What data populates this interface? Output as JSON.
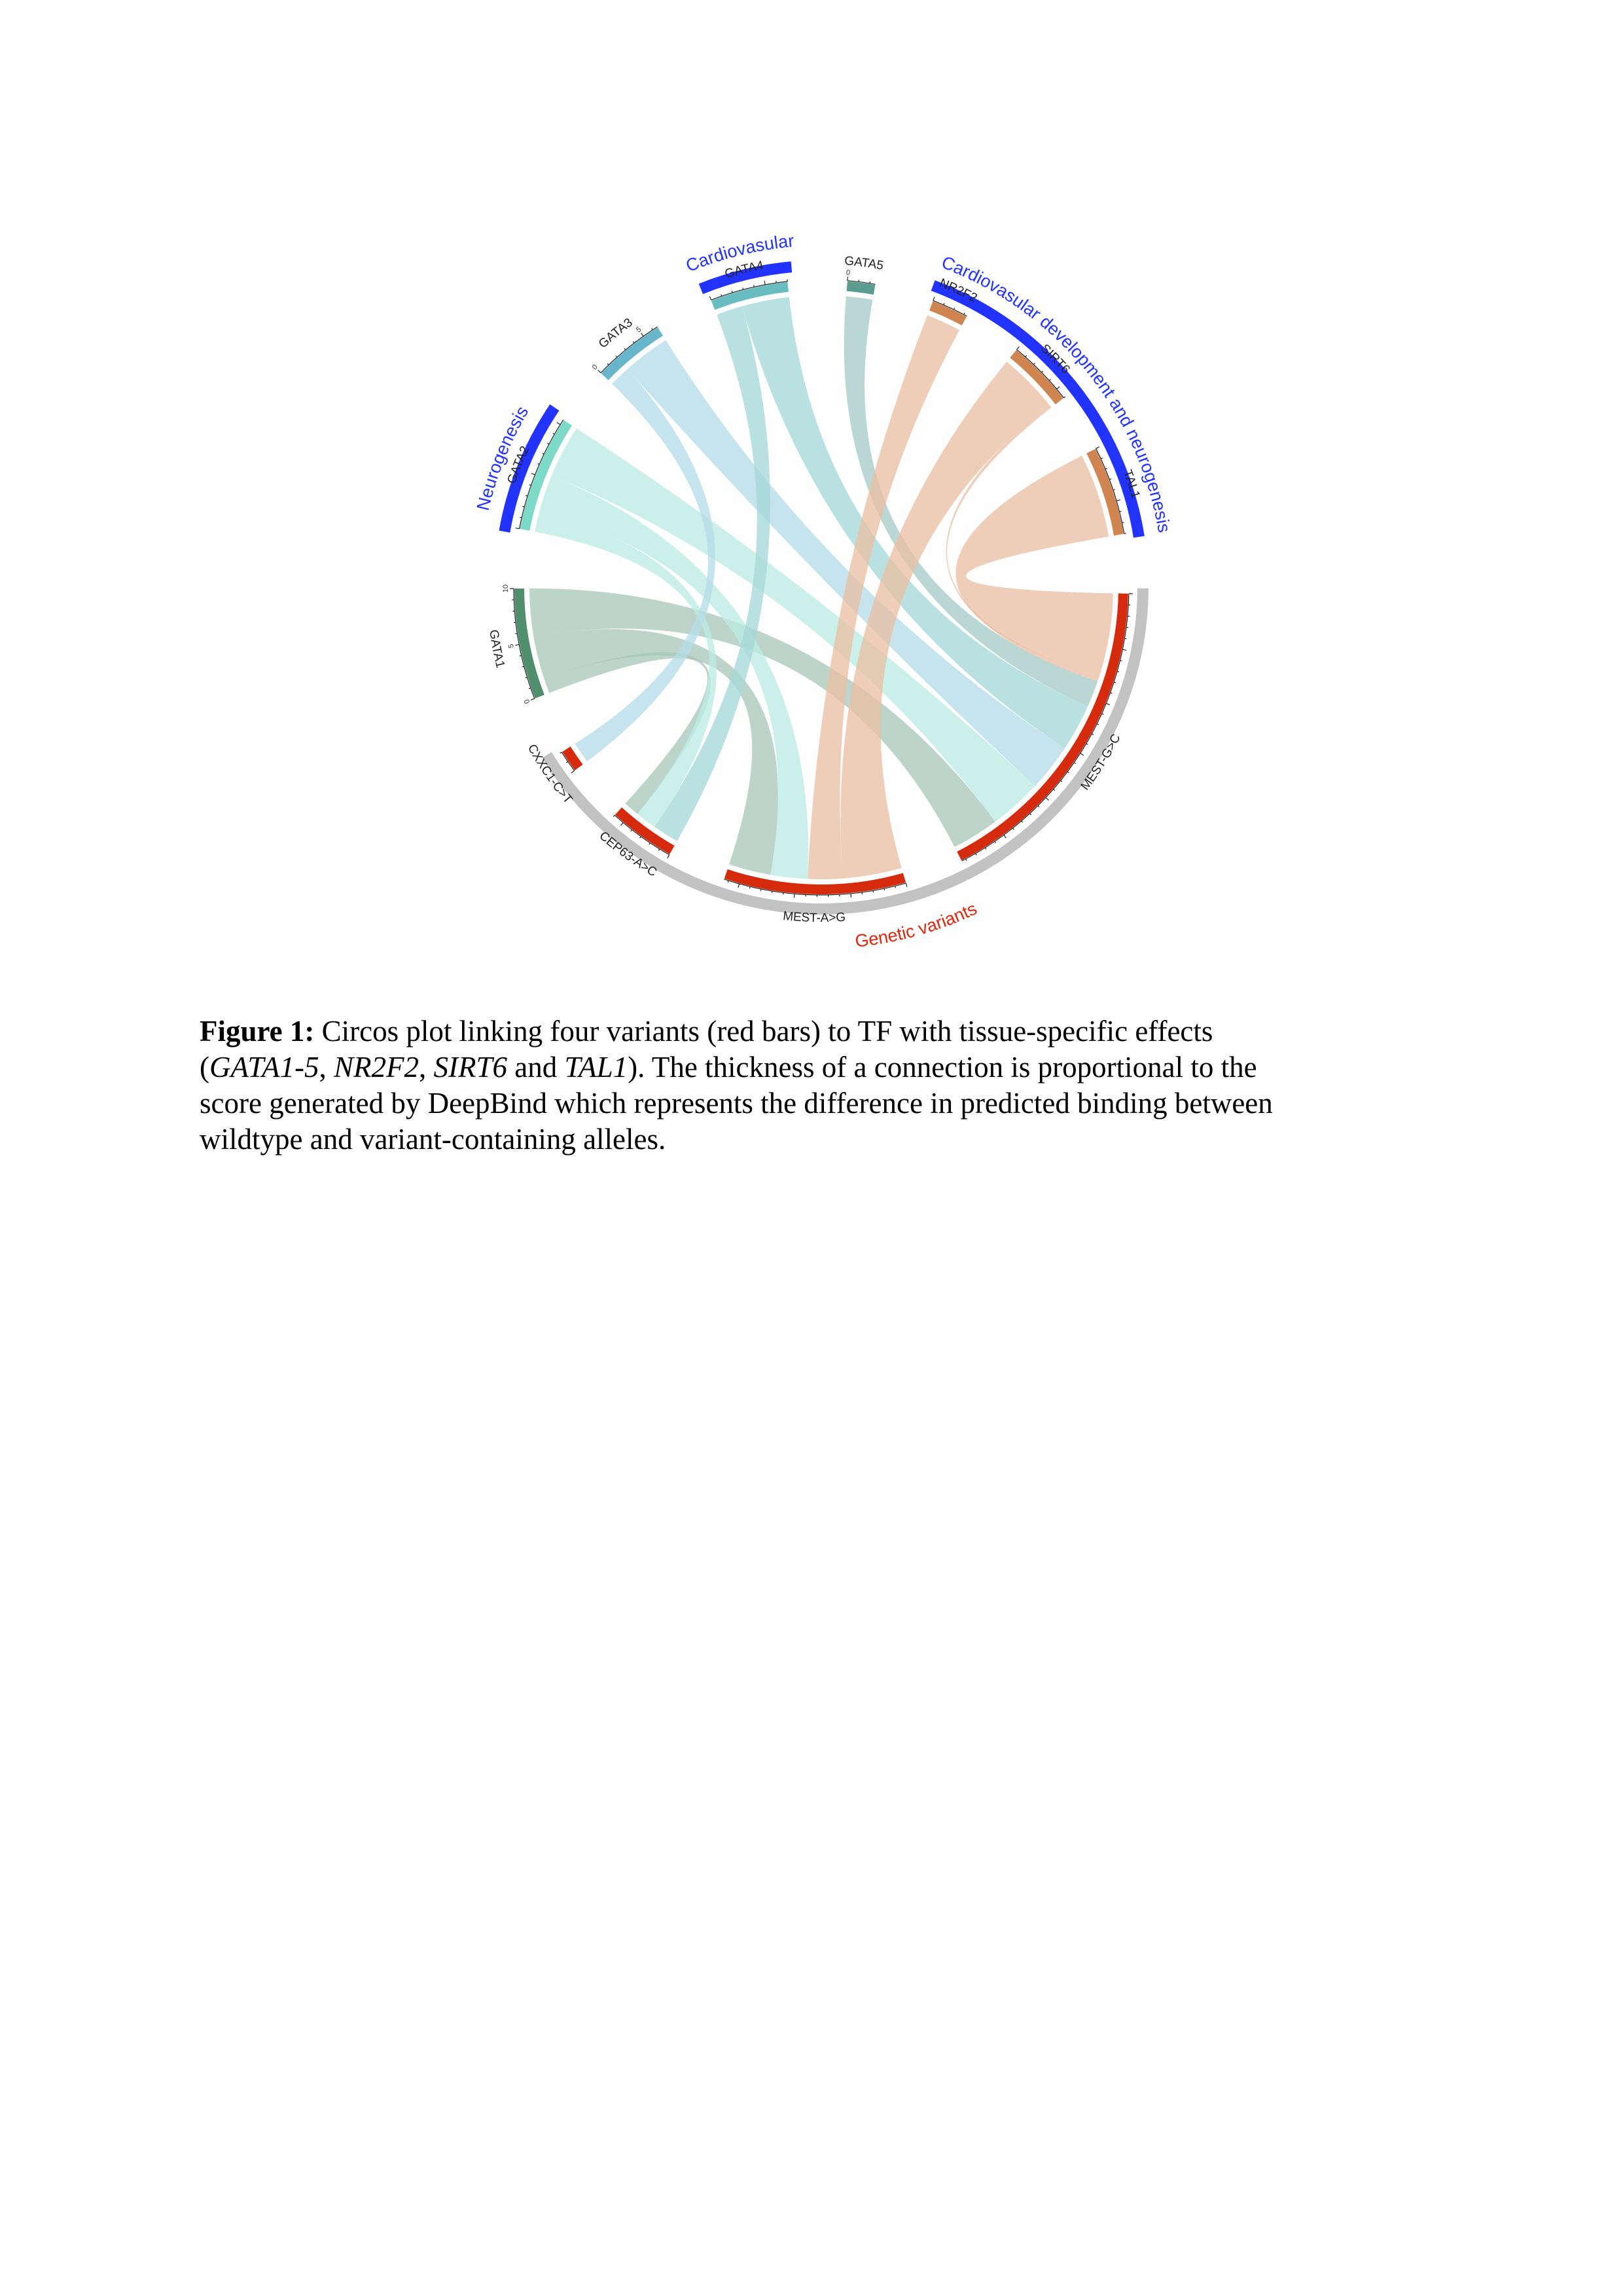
{
  "chart_data": {
    "type": "chord",
    "sectors": [
      {
        "name": "GATA4",
        "color": "#69bcbf",
        "link_color": "#a6d9d8",
        "tick_labels": []
      },
      {
        "name": "GATA5",
        "color": "#5a9c8e",
        "link_color": "#a8ccc6",
        "tick_labels": [
          0
        ]
      },
      {
        "name": "NR2F2",
        "color": "#d0844f",
        "link_color": "#e9c0a4",
        "tick_labels": []
      },
      {
        "name": "SIRT6",
        "color": "#d0844f",
        "link_color": "#e9c0a4",
        "tick_labels": []
      },
      {
        "name": "TAL1",
        "color": "#d0844f",
        "link_color": "#e9c0a4",
        "tick_labels": []
      },
      {
        "name": "MEST-G>C",
        "color": "#d62a0c",
        "link_color": null,
        "tick_labels": []
      },
      {
        "name": "MEST-A>G",
        "color": "#d62a0c",
        "link_color": null,
        "tick_labels": []
      },
      {
        "name": "CEP63-A>C",
        "color": "#d62a0c",
        "link_color": null,
        "tick_labels": []
      },
      {
        "name": "CXXC1-C>T",
        "color": "#d62a0c",
        "link_color": null,
        "tick_labels": []
      },
      {
        "name": "GATA1",
        "color": "#4f8f6e",
        "link_color": "#a9c8ba",
        "tick_labels": [
          0,
          5,
          10
        ]
      },
      {
        "name": "GATA2",
        "color": "#7dd9c8",
        "link_color": "#bcece3",
        "tick_labels": []
      },
      {
        "name": "GATA3",
        "color": "#68b6cc",
        "link_color": "#b5dce8",
        "tick_labels": [
          0,
          5
        ]
      }
    ],
    "groups": [
      {
        "label": "Cardiovasular",
        "members": [
          "GATA4"
        ],
        "bar_color": "#2233ff",
        "label_color": "#2233ff"
      },
      {
        "label": "Cardiovasular development and neurogenesis",
        "members": [
          "NR2F2",
          "SIRT6",
          "TAL1"
        ],
        "bar_color": "#2233ff",
        "label_color": "#2233ff"
      },
      {
        "label": "Neurogenesis",
        "members": [
          "GATA2"
        ],
        "bar_color": "#2233ff",
        "label_color": "#2233ff"
      },
      {
        "label": "Genetic variants",
        "members": [
          "MEST-G>C",
          "MEST-A>G",
          "CEP63-A>C",
          "CXXC1-C>T"
        ],
        "bar_color": "#c2c2c2",
        "label_color": "#e0260c"
      }
    ],
    "links": [
      {
        "source": "GATA1",
        "target": "MEST-G>C",
        "value": 4.5
      },
      {
        "source": "GATA1",
        "target": "CEP63-A>C",
        "value": 1.5
      },
      {
        "source": "GATA1",
        "target": "MEST-A>G",
        "value": 4.0
      },
      {
        "source": "GATA2",
        "target": "MEST-G>C",
        "value": 5.0
      },
      {
        "source": "GATA2",
        "target": "MEST-A>G",
        "value": 3.5
      },
      {
        "source": "GATA2",
        "target": "CEP63-A>C",
        "value": 2.0
      },
      {
        "source": "GATA3",
        "target": "MEST-G>C",
        "value": 4.5
      },
      {
        "source": "GATA3",
        "target": "CXXC1-C>T",
        "value": 2.0
      },
      {
        "source": "GATA4",
        "target": "MEST-G>C",
        "value": 4.5
      },
      {
        "source": "GATA4",
        "target": "CEP63-A>C",
        "value": 2.5
      },
      {
        "source": "GATA5",
        "target": "MEST-G>C",
        "value": 2.5
      },
      {
        "source": "NR2F2",
        "target": "MEST-A>G",
        "value": 3.3
      },
      {
        "source": "SIRT6",
        "target": "MEST-A>G",
        "value": 5.6
      },
      {
        "source": "SIRT6",
        "target": "MEST-G>C",
        "value": 0.4
      },
      {
        "source": "TAL1",
        "target": "MEST-G>C",
        "value": 8.0
      }
    ]
  },
  "caption": {
    "lines": [
      [
        {
          "text": "Figure 1:",
          "style": "b"
        },
        {
          "text": " Circos plot linking four variants (red bars) to TF with tissue-specific effects",
          "style": ""
        }
      ],
      [
        {
          "text": "(",
          "style": ""
        },
        {
          "text": "GATA1-5",
          "style": "i"
        },
        {
          "text": ", ",
          "style": ""
        },
        {
          "text": "NR2F2",
          "style": "i"
        },
        {
          "text": ", ",
          "style": ""
        },
        {
          "text": "SIRT6",
          "style": "i"
        },
        {
          "text": " and ",
          "style": ""
        },
        {
          "text": "TAL1",
          "style": "i"
        },
        {
          "text": "). The thickness of a connection is proportional to the",
          "style": ""
        }
      ],
      [
        {
          "text": "score generated by DeepBind which represents the difference in predicted binding between",
          "style": ""
        }
      ],
      [
        {
          "text": "wildtype and variant-containing alleles.",
          "style": ""
        }
      ]
    ]
  }
}
